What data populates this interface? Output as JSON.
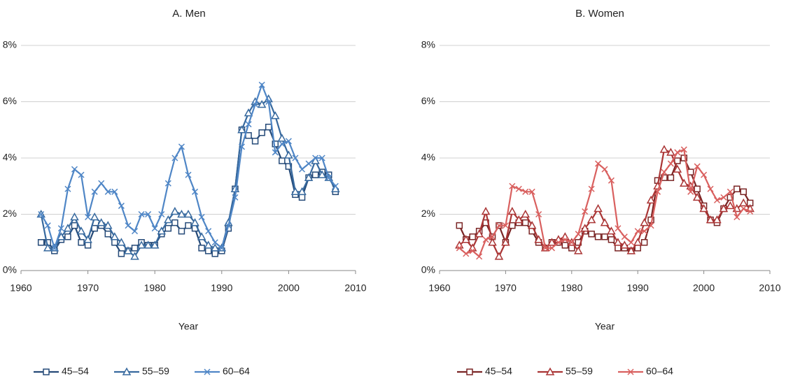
{
  "chart_data": [
    {
      "type": "line",
      "title": "A. Men",
      "x_label": "Year",
      "x": [
        1963,
        1964,
        1965,
        1966,
        1967,
        1968,
        1969,
        1970,
        1971,
        1972,
        1973,
        1974,
        1975,
        1976,
        1977,
        1978,
        1979,
        1980,
        1981,
        1982,
        1983,
        1984,
        1985,
        1986,
        1987,
        1988,
        1989,
        1990,
        1991,
        1992,
        1993,
        1994,
        1995,
        1996,
        1997,
        1998,
        1999,
        2000,
        2001,
        2002,
        2003,
        2004,
        2005,
        2006,
        2007
      ],
      "xlim": [
        1960,
        2010
      ],
      "xticks": [
        1960,
        1970,
        1980,
        1990,
        2000,
        2010
      ],
      "ylim": [
        0,
        8
      ],
      "yticks": [
        {
          "value": 0,
          "label": "0%"
        },
        {
          "value": 2,
          "label": "2%"
        },
        {
          "value": 4,
          "label": "4%"
        },
        {
          "value": 6,
          "label": "6%"
        },
        {
          "value": 8,
          "label": "8%"
        }
      ],
      "grid": true,
      "legend": "bottom",
      "series": [
        {
          "name": "45–54",
          "color": "#254a78",
          "marker": "square",
          "values": [
            1.0,
            1.0,
            0.7,
            1.1,
            1.2,
            1.6,
            1.0,
            0.9,
            1.5,
            1.6,
            1.3,
            1.0,
            0.6,
            0.7,
            0.8,
            1.0,
            0.9,
            0.9,
            1.3,
            1.5,
            1.7,
            1.4,
            1.6,
            1.5,
            0.8,
            0.7,
            0.6,
            0.7,
            1.5,
            2.9,
            5.0,
            4.8,
            4.6,
            4.9,
            5.1,
            4.5,
            3.9,
            3.7,
            2.7,
            2.6,
            3.3,
            3.4,
            3.5,
            3.4,
            2.8
          ]
        },
        {
          "name": "55–59",
          "color": "#37699e",
          "marker": "triangle",
          "values": [
            2.0,
            0.8,
            0.8,
            1.2,
            1.5,
            1.9,
            1.4,
            1.1,
            1.9,
            1.7,
            1.6,
            1.2,
            1.0,
            0.7,
            0.5,
            0.9,
            0.9,
            0.9,
            1.4,
            1.8,
            2.1,
            2.0,
            2.0,
            1.7,
            1.2,
            0.9,
            0.8,
            0.8,
            1.7,
            2.9,
            5.0,
            5.6,
            6.0,
            5.9,
            6.1,
            5.5,
            4.7,
            4.1,
            2.8,
            2.8,
            3.3,
            3.9,
            3.4,
            3.3,
            2.9
          ]
        },
        {
          "name": "60–64",
          "color": "#4f86c6",
          "marker": "x",
          "values": [
            2.0,
            1.6,
            0.8,
            1.5,
            2.9,
            3.6,
            3.4,
            1.9,
            2.8,
            3.1,
            2.8,
            2.8,
            2.3,
            1.6,
            1.4,
            2.0,
            2.0,
            1.5,
            2.0,
            3.1,
            4.0,
            4.4,
            3.4,
            2.8,
            1.9,
            1.4,
            1.0,
            0.8,
            1.6,
            2.6,
            4.4,
            5.2,
            5.9,
            6.6,
            6.0,
            4.2,
            4.5,
            4.6,
            4.0,
            3.6,
            3.8,
            4.0,
            4.0,
            3.3,
            3.0
          ]
        }
      ]
    },
    {
      "type": "line",
      "title": "B. Women",
      "x_label": "Year",
      "x": [
        1963,
        1964,
        1965,
        1966,
        1967,
        1968,
        1969,
        1970,
        1971,
        1972,
        1973,
        1974,
        1975,
        1976,
        1977,
        1978,
        1979,
        1980,
        1981,
        1982,
        1983,
        1984,
        1985,
        1986,
        1987,
        1988,
        1989,
        1990,
        1991,
        1992,
        1993,
        1994,
        1995,
        1996,
        1997,
        1998,
        1999,
        2000,
        2001,
        2002,
        2003,
        2004,
        2005,
        2006,
        2007
      ],
      "xlim": [
        1960,
        2010
      ],
      "xticks": [
        1960,
        1970,
        1980,
        1990,
        2000,
        2010
      ],
      "ylim": [
        0,
        8
      ],
      "yticks": [
        {
          "value": 0,
          "label": "0%"
        },
        {
          "value": 2,
          "label": "2%"
        },
        {
          "value": 4,
          "label": "4%"
        },
        {
          "value": 6,
          "label": "6%"
        },
        {
          "value": 8,
          "label": "8%"
        }
      ],
      "grid": true,
      "legend": "bottom",
      "series": [
        {
          "name": "45–54",
          "color": "#7a2525",
          "marker": "square",
          "values": [
            1.6,
            1.1,
            1.2,
            1.4,
            1.7,
            1.2,
            1.6,
            1.0,
            1.6,
            1.7,
            1.7,
            1.4,
            1.0,
            0.8,
            1.0,
            1.0,
            0.9,
            0.8,
            1.0,
            1.4,
            1.3,
            1.2,
            1.2,
            1.1,
            0.8,
            0.8,
            0.7,
            0.8,
            1.0,
            1.8,
            3.2,
            3.3,
            3.3,
            3.9,
            4.0,
            3.5,
            2.9,
            2.3,
            1.8,
            1.7,
            2.2,
            2.6,
            2.9,
            2.8,
            2.4
          ]
        },
        {
          "name": "55–59",
          "color": "#aa3535",
          "marker": "triangle",
          "values": [
            0.9,
            1.1,
            0.8,
            1.3,
            2.1,
            1.0,
            0.5,
            1.0,
            2.1,
            1.8,
            2.0,
            1.6,
            1.1,
            0.8,
            1.0,
            1.1,
            1.2,
            1.0,
            0.7,
            1.5,
            1.8,
            2.2,
            1.7,
            1.4,
            1.0,
            0.9,
            0.7,
            1.0,
            1.7,
            2.5,
            3.0,
            4.3,
            4.2,
            3.6,
            3.1,
            3.0,
            2.6,
            2.2,
            1.8,
            1.8,
            2.2,
            2.3,
            2.2,
            2.4,
            2.2
          ]
        },
        {
          "name": "60–64",
          "color": "#d9605f",
          "marker": "x",
          "values": [
            0.8,
            0.6,
            0.7,
            0.5,
            1.1,
            1.2,
            1.6,
            1.6,
            3.0,
            2.9,
            2.8,
            2.8,
            2.0,
            0.8,
            0.8,
            1.0,
            1.1,
            1.0,
            1.3,
            2.1,
            2.9,
            3.8,
            3.6,
            3.2,
            1.5,
            1.2,
            1.0,
            1.4,
            1.4,
            1.6,
            2.8,
            3.5,
            3.8,
            4.2,
            4.3,
            2.8,
            3.7,
            3.4,
            2.9,
            2.5,
            2.6,
            2.8,
            1.9,
            2.2,
            2.1
          ]
        }
      ]
    }
  ]
}
